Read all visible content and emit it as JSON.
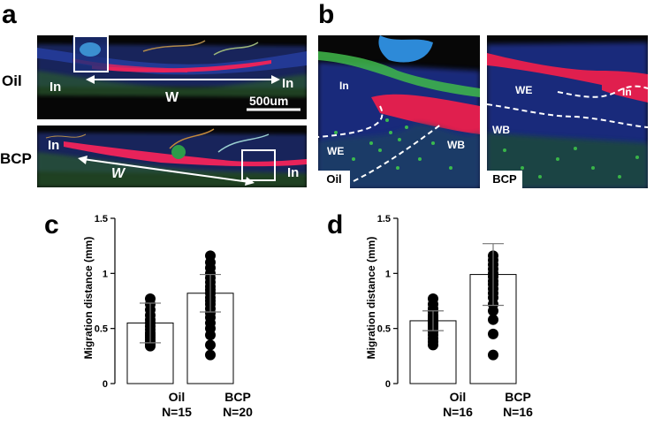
{
  "panels": {
    "a": {
      "letter": "a",
      "rows": [
        {
          "label": "Oil",
          "markers": {
            "in_left": "In",
            "in_right": "In",
            "w": "W",
            "scale": "500um"
          }
        },
        {
          "label": "BCP",
          "markers": {
            "in_left": "In",
            "in_right": "In",
            "w": "W"
          }
        }
      ]
    },
    "b": {
      "letter": "b",
      "images": [
        {
          "tag": "Oil",
          "markers": {
            "in": "In",
            "we": "WE",
            "wb": "WB"
          }
        },
        {
          "tag": "BCP",
          "markers": {
            "in": "In",
            "we": "WE",
            "wb": "WB"
          }
        }
      ]
    },
    "c": {
      "letter": "c"
    },
    "d": {
      "letter": "d"
    }
  },
  "chart_data": [
    {
      "type": "bar",
      "panel": "c",
      "ylabel": "Migration distance (mm)",
      "yticks": [
        "0",
        "0.5",
        "1",
        "1.5"
      ],
      "ylim": [
        0,
        1.5
      ],
      "categories": [
        {
          "name": "Oil",
          "n": "N=15"
        },
        {
          "name": "BCP",
          "n": "N=20"
        }
      ],
      "values": [
        0.55,
        0.82
      ],
      "errors": [
        0.18,
        0.17
      ],
      "points": [
        [
          0.77,
          0.72,
          0.67,
          0.62,
          0.58,
          0.55,
          0.52,
          0.49,
          0.46,
          0.44,
          0.42,
          0.4,
          0.38,
          0.36,
          0.34
        ],
        [
          1.16,
          1.1,
          1.05,
          1.0,
          0.96,
          0.92,
          0.88,
          0.85,
          0.82,
          0.78,
          0.75,
          0.72,
          0.68,
          0.64,
          0.6,
          0.55,
          0.5,
          0.44,
          0.35,
          0.26
        ]
      ]
    },
    {
      "type": "bar",
      "panel": "d",
      "ylabel": "Migration distance (mm)",
      "yticks": [
        "0",
        "0.5",
        "1",
        "1.5"
      ],
      "ylim": [
        0,
        1.5
      ],
      "categories": [
        {
          "name": "Oil",
          "n": "N=16"
        },
        {
          "name": "BCP",
          "n": "N=16"
        }
      ],
      "values": [
        0.57,
        0.99
      ],
      "errors": [
        0.09,
        0.28
      ],
      "points": [
        [
          0.77,
          0.72,
          0.68,
          0.65,
          0.62,
          0.6,
          0.58,
          0.56,
          0.54,
          0.52,
          0.5,
          0.47,
          0.44,
          0.41,
          0.38,
          0.35
        ],
        [
          1.16,
          1.12,
          1.08,
          1.04,
          1.0,
          0.97,
          0.93,
          0.9,
          0.86,
          0.82,
          0.78,
          0.72,
          0.66,
          0.58,
          0.45,
          0.26
        ]
      ]
    }
  ]
}
